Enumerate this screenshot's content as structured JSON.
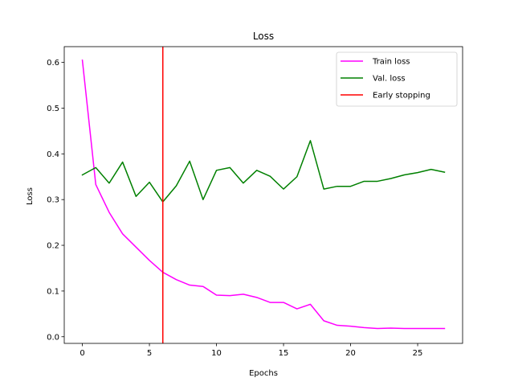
{
  "chart_data": {
    "type": "line",
    "title": "Loss",
    "xlabel": "Epochs",
    "ylabel": "Loss",
    "xlim": [
      -1.35,
      28.35
    ],
    "ylim": [
      -0.0145,
      0.6345
    ],
    "xticks": [
      0,
      5,
      10,
      15,
      20,
      25
    ],
    "yticks": [
      0.0,
      0.1,
      0.2,
      0.3,
      0.4,
      0.5,
      0.6
    ],
    "ytick_labels": [
      "0.0",
      "0.1",
      "0.2",
      "0.3",
      "0.4",
      "0.5",
      "0.6"
    ],
    "grid": false,
    "legend_position": "top-right",
    "x": [
      0,
      1,
      2,
      3,
      4,
      5,
      6,
      7,
      8,
      9,
      10,
      11,
      12,
      13,
      14,
      15,
      16,
      17,
      18,
      19,
      20,
      21,
      22,
      23,
      24,
      25,
      26,
      27
    ],
    "series": [
      {
        "name": "Train loss",
        "color": "#ff00ff",
        "values": [
          0.605,
          0.333,
          0.272,
          0.225,
          0.196,
          0.167,
          0.141,
          0.125,
          0.113,
          0.11,
          0.091,
          0.09,
          0.093,
          0.086,
          0.075,
          0.075,
          0.061,
          0.071,
          0.035,
          0.025,
          0.023,
          0.02,
          0.018,
          0.019,
          0.018,
          0.018,
          0.018,
          0.018
        ]
      },
      {
        "name": "Val. loss",
        "color": "#008000",
        "values": [
          0.354,
          0.37,
          0.336,
          0.382,
          0.307,
          0.338,
          0.295,
          0.33,
          0.384,
          0.3,
          0.364,
          0.37,
          0.336,
          0.364,
          0.351,
          0.323,
          0.35,
          0.429,
          0.323,
          0.329,
          0.329,
          0.34,
          0.34,
          0.346,
          0.354,
          0.359,
          0.366,
          0.36
        ]
      }
    ],
    "vlines": [
      {
        "name": "Early stopping",
        "x": 6,
        "color": "#ff0000"
      }
    ]
  }
}
